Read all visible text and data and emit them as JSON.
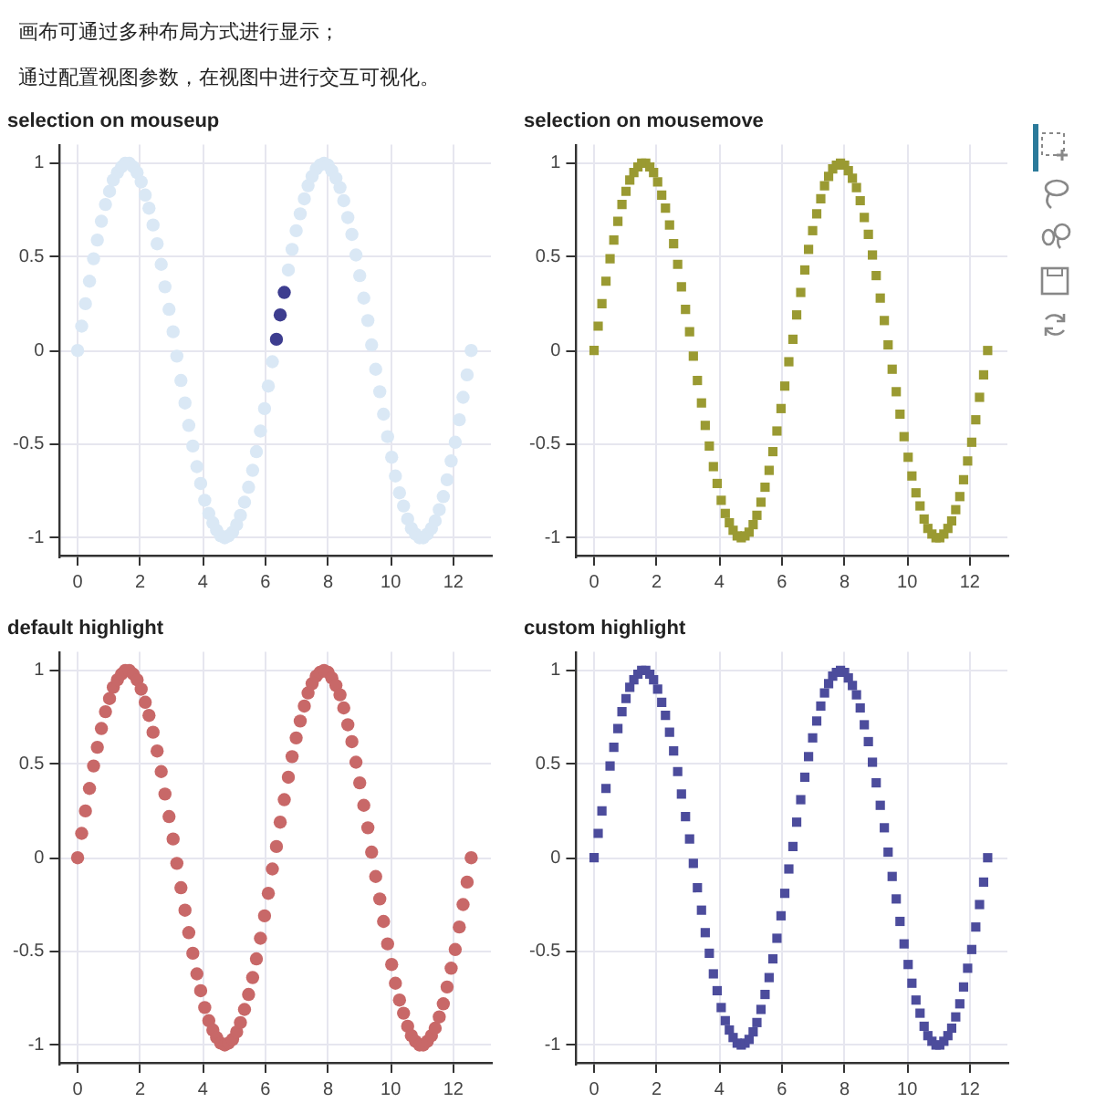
{
  "chart_data": [
    {
      "type": "scatter",
      "title": "selection on mouseup",
      "annotations": [
        "画布可通过多种布局方式进行显示；",
        "通过配置视图参数，在视图中进行交互可视化。"
      ],
      "marker": "circle",
      "grid": true,
      "xlim": [
        -0.6,
        13.2
      ],
      "ylim": [
        -1.1,
        1.1
      ],
      "xticks": [
        0,
        2,
        4,
        6,
        8,
        10,
        12
      ],
      "yticks": [
        -1,
        -0.5,
        0,
        0.5,
        1
      ],
      "x": [
        0,
        0.13,
        0.25,
        0.38,
        0.51,
        0.63,
        0.76,
        0.89,
        1.02,
        1.14,
        1.27,
        1.4,
        1.52,
        1.65,
        1.78,
        1.9,
        2.03,
        2.16,
        2.28,
        2.41,
        2.54,
        2.67,
        2.79,
        2.92,
        3.05,
        3.17,
        3.3,
        3.43,
        3.55,
        3.68,
        3.81,
        3.93,
        4.06,
        4.19,
        4.32,
        4.44,
        4.57,
        4.7,
        4.82,
        4.95,
        5.08,
        5.2,
        5.33,
        5.46,
        5.59,
        5.71,
        5.84,
        5.97,
        6.09,
        6.22,
        6.35,
        6.47,
        6.6,
        6.73,
        6.85,
        6.98,
        7.11,
        7.24,
        7.36,
        7.49,
        7.62,
        7.74,
        7.87,
        8,
        8.12,
        8.25,
        8.38,
        8.5,
        8.63,
        8.76,
        8.89,
        9.01,
        9.14,
        9.27,
        9.39,
        9.52,
        9.65,
        9.77,
        9.9,
        10.03,
        10.15,
        10.28,
        10.41,
        10.54,
        10.66,
        10.79,
        10.92,
        11.04,
        11.17,
        11.3,
        11.42,
        11.55,
        11.68,
        11.8,
        11.93,
        12.06,
        12.19,
        12.31,
        12.44,
        12.57
      ],
      "values": [
        0,
        0.13,
        0.25,
        0.37,
        0.49,
        0.59,
        0.69,
        0.78,
        0.85,
        0.91,
        0.95,
        0.98,
        1,
        1,
        0.98,
        0.95,
        0.9,
        0.83,
        0.76,
        0.67,
        0.57,
        0.46,
        0.34,
        0.22,
        0.1,
        -0.03,
        -0.16,
        -0.28,
        -0.4,
        -0.51,
        -0.62,
        -0.71,
        -0.8,
        -0.87,
        -0.92,
        -0.96,
        -0.99,
        -1,
        -0.99,
        -0.97,
        -0.93,
        -0.88,
        -0.81,
        -0.73,
        -0.64,
        -0.54,
        -0.43,
        -0.31,
        -0.19,
        -0.06,
        0.06,
        0.19,
        0.31,
        0.43,
        0.54,
        0.64,
        0.73,
        0.81,
        0.88,
        0.93,
        0.97,
        0.99,
        1,
        0.99,
        0.96,
        0.92,
        0.87,
        0.8,
        0.71,
        0.62,
        0.51,
        0.4,
        0.28,
        0.16,
        0.03,
        -0.1,
        -0.22,
        -0.34,
        -0.46,
        -0.57,
        -0.67,
        -0.76,
        -0.83,
        -0.9,
        -0.95,
        -0.98,
        -1,
        -1,
        -0.98,
        -0.95,
        -0.91,
        -0.85,
        -0.78,
        -0.69,
        -0.59,
        -0.49,
        -0.37,
        -0.25,
        -0.13,
        0
      ],
      "colors": [
        "#dae8f5",
        "#dae8f5",
        "#dae8f5",
        "#dae8f5",
        "#dae8f5",
        "#dae8f5",
        "#dae8f5",
        "#dae8f5",
        "#dae8f5",
        "#dae8f5",
        "#dae8f5",
        "#dae8f5",
        "#dae8f5",
        "#dae8f5",
        "#dae8f5",
        "#dae8f5",
        "#dae8f5",
        "#dae8f5",
        "#dae8f5",
        "#dae8f5",
        "#dae8f5",
        "#dae8f5",
        "#dae8f5",
        "#dae8f5",
        "#dae8f5",
        "#dae8f5",
        "#dae8f5",
        "#dae8f5",
        "#dae8f5",
        "#dae8f5",
        "#dae8f5",
        "#dae8f5",
        "#dae8f5",
        "#dae8f5",
        "#dae8f5",
        "#dae8f5",
        "#dae8f5",
        "#dae8f5",
        "#dae8f5",
        "#dae8f5",
        "#dae8f5",
        "#dae8f5",
        "#dae8f5",
        "#dae8f5",
        "#dae8f5",
        "#dae8f5",
        "#dae8f5",
        "#dae8f5",
        "#dae8f5",
        "#dae8f5",
        "#3d3d8f",
        "#3d3d8f",
        "#3d3d8f",
        "#dae8f5",
        "#dae8f5",
        "#dae8f5",
        "#dae8f5",
        "#dae8f5",
        "#dae8f5",
        "#dae8f5",
        "#dae8f5",
        "#dae8f5",
        "#dae8f5",
        "#dae8f5",
        "#dae8f5",
        "#dae8f5",
        "#dae8f5",
        "#dae8f5",
        "#dae8f5",
        "#dae8f5",
        "#dae8f5",
        "#dae8f5",
        "#dae8f5",
        "#dae8f5",
        "#dae8f5",
        "#dae8f5",
        "#dae8f5",
        "#dae8f5",
        "#dae8f5",
        "#dae8f5",
        "#dae8f5",
        "#dae8f5",
        "#dae8f5",
        "#dae8f5",
        "#dae8f5",
        "#dae8f5",
        "#dae8f5",
        "#dae8f5",
        "#dae8f5",
        "#dae8f5",
        "#dae8f5",
        "#dae8f5",
        "#dae8f5",
        "#dae8f5",
        "#dae8f5",
        "#dae8f5",
        "#dae8f5",
        "#dae8f5",
        "#dae8f5",
        "#dae8f5"
      ]
    },
    {
      "type": "scatter",
      "title": "selection on mousemove",
      "marker": "square",
      "grid": true,
      "xlim": [
        -0.6,
        13.2
      ],
      "ylim": [
        -1.1,
        1.1
      ],
      "xticks": [
        0,
        2,
        4,
        6,
        8,
        10,
        12
      ],
      "yticks": [
        -1,
        -0.5,
        0,
        0.5,
        1
      ],
      "color": "#9a9a32",
      "x": [
        0,
        0.13,
        0.25,
        0.38,
        0.51,
        0.63,
        0.76,
        0.89,
        1.02,
        1.14,
        1.27,
        1.4,
        1.52,
        1.65,
        1.78,
        1.9,
        2.03,
        2.16,
        2.28,
        2.41,
        2.54,
        2.67,
        2.79,
        2.92,
        3.05,
        3.17,
        3.3,
        3.43,
        3.55,
        3.68,
        3.81,
        3.93,
        4.06,
        4.19,
        4.32,
        4.44,
        4.57,
        4.7,
        4.82,
        4.95,
        5.08,
        5.2,
        5.33,
        5.46,
        5.59,
        5.71,
        5.84,
        5.97,
        6.09,
        6.22,
        6.35,
        6.47,
        6.6,
        6.73,
        6.85,
        6.98,
        7.11,
        7.24,
        7.36,
        7.49,
        7.62,
        7.74,
        7.87,
        8,
        8.12,
        8.25,
        8.38,
        8.5,
        8.63,
        8.76,
        8.89,
        9.01,
        9.14,
        9.27,
        9.39,
        9.52,
        9.65,
        9.77,
        9.9,
        10.03,
        10.15,
        10.28,
        10.41,
        10.54,
        10.66,
        10.79,
        10.92,
        11.04,
        11.17,
        11.3,
        11.42,
        11.55,
        11.68,
        11.8,
        11.93,
        12.06,
        12.19,
        12.31,
        12.44,
        12.57
      ],
      "values": [
        0,
        0.13,
        0.25,
        0.37,
        0.49,
        0.59,
        0.69,
        0.78,
        0.85,
        0.91,
        0.95,
        0.98,
        1,
        1,
        0.98,
        0.95,
        0.9,
        0.83,
        0.76,
        0.67,
        0.57,
        0.46,
        0.34,
        0.22,
        0.1,
        -0.03,
        -0.16,
        -0.28,
        -0.4,
        -0.51,
        -0.62,
        -0.71,
        -0.8,
        -0.87,
        -0.92,
        -0.96,
        -0.99,
        -1,
        -0.99,
        -0.97,
        -0.93,
        -0.88,
        -0.81,
        -0.73,
        -0.64,
        -0.54,
        -0.43,
        -0.31,
        -0.19,
        -0.06,
        0.06,
        0.19,
        0.31,
        0.43,
        0.54,
        0.64,
        0.73,
        0.81,
        0.88,
        0.93,
        0.97,
        0.99,
        1,
        0.99,
        0.96,
        0.92,
        0.87,
        0.8,
        0.71,
        0.62,
        0.51,
        0.4,
        0.28,
        0.16,
        0.03,
        -0.1,
        -0.22,
        -0.34,
        -0.46,
        -0.57,
        -0.67,
        -0.76,
        -0.83,
        -0.9,
        -0.95,
        -0.98,
        -1,
        -1,
        -0.98,
        -0.95,
        -0.91,
        -0.85,
        -0.78,
        -0.69,
        -0.59,
        -0.49,
        -0.37,
        -0.25,
        -0.13,
        0
      ]
    },
    {
      "type": "scatter",
      "title": "default highlight",
      "marker": "circle",
      "grid": true,
      "xlim": [
        -0.6,
        13.2
      ],
      "ylim": [
        -1.1,
        1.1
      ],
      "xticks": [
        0,
        2,
        4,
        6,
        8,
        10,
        12
      ],
      "yticks": [
        -1,
        -0.5,
        0,
        0.5,
        1
      ],
      "color": "#c86868",
      "x": [
        0,
        0.13,
        0.25,
        0.38,
        0.51,
        0.63,
        0.76,
        0.89,
        1.02,
        1.14,
        1.27,
        1.4,
        1.52,
        1.65,
        1.78,
        1.9,
        2.03,
        2.16,
        2.28,
        2.41,
        2.54,
        2.67,
        2.79,
        2.92,
        3.05,
        3.17,
        3.3,
        3.43,
        3.55,
        3.68,
        3.81,
        3.93,
        4.06,
        4.19,
        4.32,
        4.44,
        4.57,
        4.7,
        4.82,
        4.95,
        5.08,
        5.2,
        5.33,
        5.46,
        5.59,
        5.71,
        5.84,
        5.97,
        6.09,
        6.22,
        6.35,
        6.47,
        6.6,
        6.73,
        6.85,
        6.98,
        7.11,
        7.24,
        7.36,
        7.49,
        7.62,
        7.74,
        7.87,
        8,
        8.12,
        8.25,
        8.38,
        8.5,
        8.63,
        8.76,
        8.89,
        9.01,
        9.14,
        9.27,
        9.39,
        9.52,
        9.65,
        9.77,
        9.9,
        10.03,
        10.15,
        10.28,
        10.41,
        10.54,
        10.66,
        10.79,
        10.92,
        11.04,
        11.17,
        11.3,
        11.42,
        11.55,
        11.68,
        11.8,
        11.93,
        12.06,
        12.19,
        12.31,
        12.44,
        12.57
      ],
      "values": [
        0,
        0.13,
        0.25,
        0.37,
        0.49,
        0.59,
        0.69,
        0.78,
        0.85,
        0.91,
        0.95,
        0.98,
        1,
        1,
        0.98,
        0.95,
        0.9,
        0.83,
        0.76,
        0.67,
        0.57,
        0.46,
        0.34,
        0.22,
        0.1,
        -0.03,
        -0.16,
        -0.28,
        -0.4,
        -0.51,
        -0.62,
        -0.71,
        -0.8,
        -0.87,
        -0.92,
        -0.96,
        -0.99,
        -1,
        -0.99,
        -0.97,
        -0.93,
        -0.88,
        -0.81,
        -0.73,
        -0.64,
        -0.54,
        -0.43,
        -0.31,
        -0.19,
        -0.06,
        0.06,
        0.19,
        0.31,
        0.43,
        0.54,
        0.64,
        0.73,
        0.81,
        0.88,
        0.93,
        0.97,
        0.99,
        1,
        0.99,
        0.96,
        0.92,
        0.87,
        0.8,
        0.71,
        0.62,
        0.51,
        0.4,
        0.28,
        0.16,
        0.03,
        -0.1,
        -0.22,
        -0.34,
        -0.46,
        -0.57,
        -0.67,
        -0.76,
        -0.83,
        -0.9,
        -0.95,
        -0.98,
        -1,
        -1,
        -0.98,
        -0.95,
        -0.91,
        -0.85,
        -0.78,
        -0.69,
        -0.59,
        -0.49,
        -0.37,
        -0.25,
        -0.13,
        0
      ]
    },
    {
      "type": "scatter",
      "title": "custom highlight",
      "marker": "square",
      "grid": true,
      "xlim": [
        -0.6,
        13.2
      ],
      "ylim": [
        -1.1,
        1.1
      ],
      "xticks": [
        0,
        2,
        4,
        6,
        8,
        10,
        12
      ],
      "yticks": [
        -1,
        -0.5,
        0,
        0.5,
        1
      ],
      "color": "#4c4c9c",
      "x": [
        0,
        0.13,
        0.25,
        0.38,
        0.51,
        0.63,
        0.76,
        0.89,
        1.02,
        1.14,
        1.27,
        1.4,
        1.52,
        1.65,
        1.78,
        1.9,
        2.03,
        2.16,
        2.28,
        2.41,
        2.54,
        2.67,
        2.79,
        2.92,
        3.05,
        3.17,
        3.3,
        3.43,
        3.55,
        3.68,
        3.81,
        3.93,
        4.06,
        4.19,
        4.32,
        4.44,
        4.57,
        4.7,
        4.82,
        4.95,
        5.08,
        5.2,
        5.33,
        5.46,
        5.59,
        5.71,
        5.84,
        5.97,
        6.09,
        6.22,
        6.35,
        6.47,
        6.6,
        6.73,
        6.85,
        6.98,
        7.11,
        7.24,
        7.36,
        7.49,
        7.62,
        7.74,
        7.87,
        8,
        8.12,
        8.25,
        8.38,
        8.5,
        8.63,
        8.76,
        8.89,
        9.01,
        9.14,
        9.27,
        9.39,
        9.52,
        9.65,
        9.77,
        9.9,
        10.03,
        10.15,
        10.28,
        10.41,
        10.54,
        10.66,
        10.79,
        10.92,
        11.04,
        11.17,
        11.3,
        11.42,
        11.55,
        11.68,
        11.8,
        11.93,
        12.06,
        12.19,
        12.31,
        12.44,
        12.57
      ],
      "values": [
        0,
        0.13,
        0.25,
        0.37,
        0.49,
        0.59,
        0.69,
        0.78,
        0.85,
        0.91,
        0.95,
        0.98,
        1,
        1,
        0.98,
        0.95,
        0.9,
        0.83,
        0.76,
        0.67,
        0.57,
        0.46,
        0.34,
        0.22,
        0.1,
        -0.03,
        -0.16,
        -0.28,
        -0.4,
        -0.51,
        -0.62,
        -0.71,
        -0.8,
        -0.87,
        -0.92,
        -0.96,
        -0.99,
        -1,
        -0.99,
        -0.97,
        -0.93,
        -0.88,
        -0.81,
        -0.73,
        -0.64,
        -0.54,
        -0.43,
        -0.31,
        -0.19,
        -0.06,
        0.06,
        0.19,
        0.31,
        0.43,
        0.54,
        0.64,
        0.73,
        0.81,
        0.88,
        0.93,
        0.97,
        0.99,
        1,
        0.99,
        0.96,
        0.92,
        0.87,
        0.8,
        0.71,
        0.62,
        0.51,
        0.4,
        0.28,
        0.16,
        0.03,
        -0.1,
        -0.22,
        -0.34,
        -0.46,
        -0.57,
        -0.67,
        -0.76,
        -0.83,
        -0.9,
        -0.95,
        -0.98,
        -1,
        -1,
        -0.98,
        -0.95,
        -0.91,
        -0.85,
        -0.78,
        -0.69,
        -0.59,
        -0.49,
        -0.37,
        -0.25,
        -0.13,
        0
      ]
    }
  ]
}
